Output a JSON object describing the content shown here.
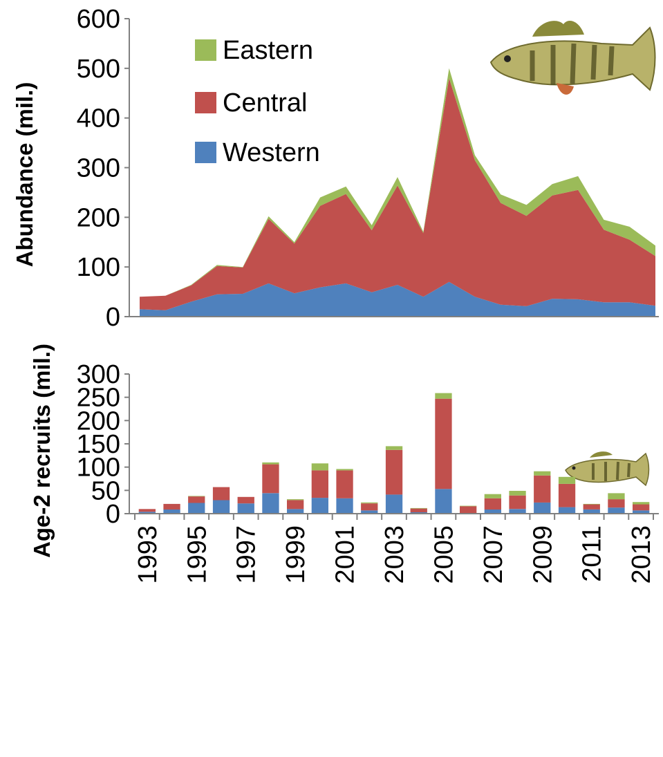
{
  "colors": {
    "western": "#4f81bd",
    "central": "#c0504d",
    "eastern": "#9bbb59",
    "axis": "#808080"
  },
  "chart_data": [
    {
      "type": "area",
      "stacked": true,
      "ylabel": "Abundance (mil.)",
      "ylim": [
        0,
        600
      ],
      "yticks": [
        0,
        100,
        200,
        300,
        400,
        500,
        600
      ],
      "x": [
        1993,
        1994,
        1995,
        1996,
        1997,
        1998,
        1999,
        2000,
        2001,
        2002,
        2003,
        2004,
        2005,
        2006,
        2007,
        2008,
        2009,
        2010,
        2011,
        2012,
        2013
      ],
      "legend": {
        "position": "top-left",
        "entries": [
          "Eastern",
          "Central",
          "Western"
        ]
      },
      "series": [
        {
          "name": "Western",
          "values": [
            15,
            13,
            30,
            45,
            46,
            67,
            47,
            59,
            67,
            49,
            64,
            40,
            70,
            40,
            24,
            21,
            36,
            35,
            29,
            29,
            22
          ]
        },
        {
          "name": "Central",
          "values": [
            25,
            29,
            33,
            57,
            53,
            130,
            100,
            164,
            180,
            125,
            200,
            128,
            410,
            275,
            205,
            182,
            208,
            220,
            146,
            126,
            100
          ]
        },
        {
          "name": "Eastern",
          "values": [
            0,
            0,
            1,
            2,
            1,
            5,
            3,
            17,
            15,
            10,
            17,
            3,
            20,
            10,
            17,
            22,
            23,
            28,
            20,
            26,
            21
          ]
        }
      ],
      "decoration": "yellow-perch-adult-icon"
    },
    {
      "type": "bar",
      "stacked": true,
      "ylabel": "Age-2 recruits (mil.)",
      "ylim": [
        0,
        300
      ],
      "yticks": [
        0,
        50,
        100,
        150,
        200,
        250,
        300
      ],
      "x": [
        1993,
        1994,
        1995,
        1996,
        1997,
        1998,
        1999,
        2000,
        2001,
        2002,
        2003,
        2004,
        2005,
        2006,
        2007,
        2008,
        2009,
        2010,
        2011,
        2012,
        2013
      ],
      "xtick_labels": [
        "1993",
        "1995",
        "1997",
        "1999",
        "2001",
        "2003",
        "2005",
        "2007",
        "2009",
        "2011",
        "2013"
      ],
      "series": [
        {
          "name": "Western",
          "values": [
            4,
            9,
            23,
            29,
            22,
            44,
            10,
            34,
            33,
            7,
            41,
            3,
            53,
            1,
            9,
            10,
            24,
            14,
            9,
            13,
            7
          ]
        },
        {
          "name": "Central",
          "values": [
            6,
            12,
            14,
            28,
            14,
            62,
            19,
            59,
            60,
            15,
            96,
            8,
            194,
            15,
            24,
            29,
            58,
            50,
            11,
            18,
            13
          ]
        },
        {
          "name": "Eastern",
          "values": [
            0,
            0,
            1,
            0,
            0,
            4,
            2,
            15,
            3,
            2,
            8,
            1,
            12,
            1,
            9,
            10,
            9,
            15,
            1,
            13,
            5
          ]
        }
      ],
      "decoration": "yellow-perch-juvenile-icon"
    }
  ]
}
